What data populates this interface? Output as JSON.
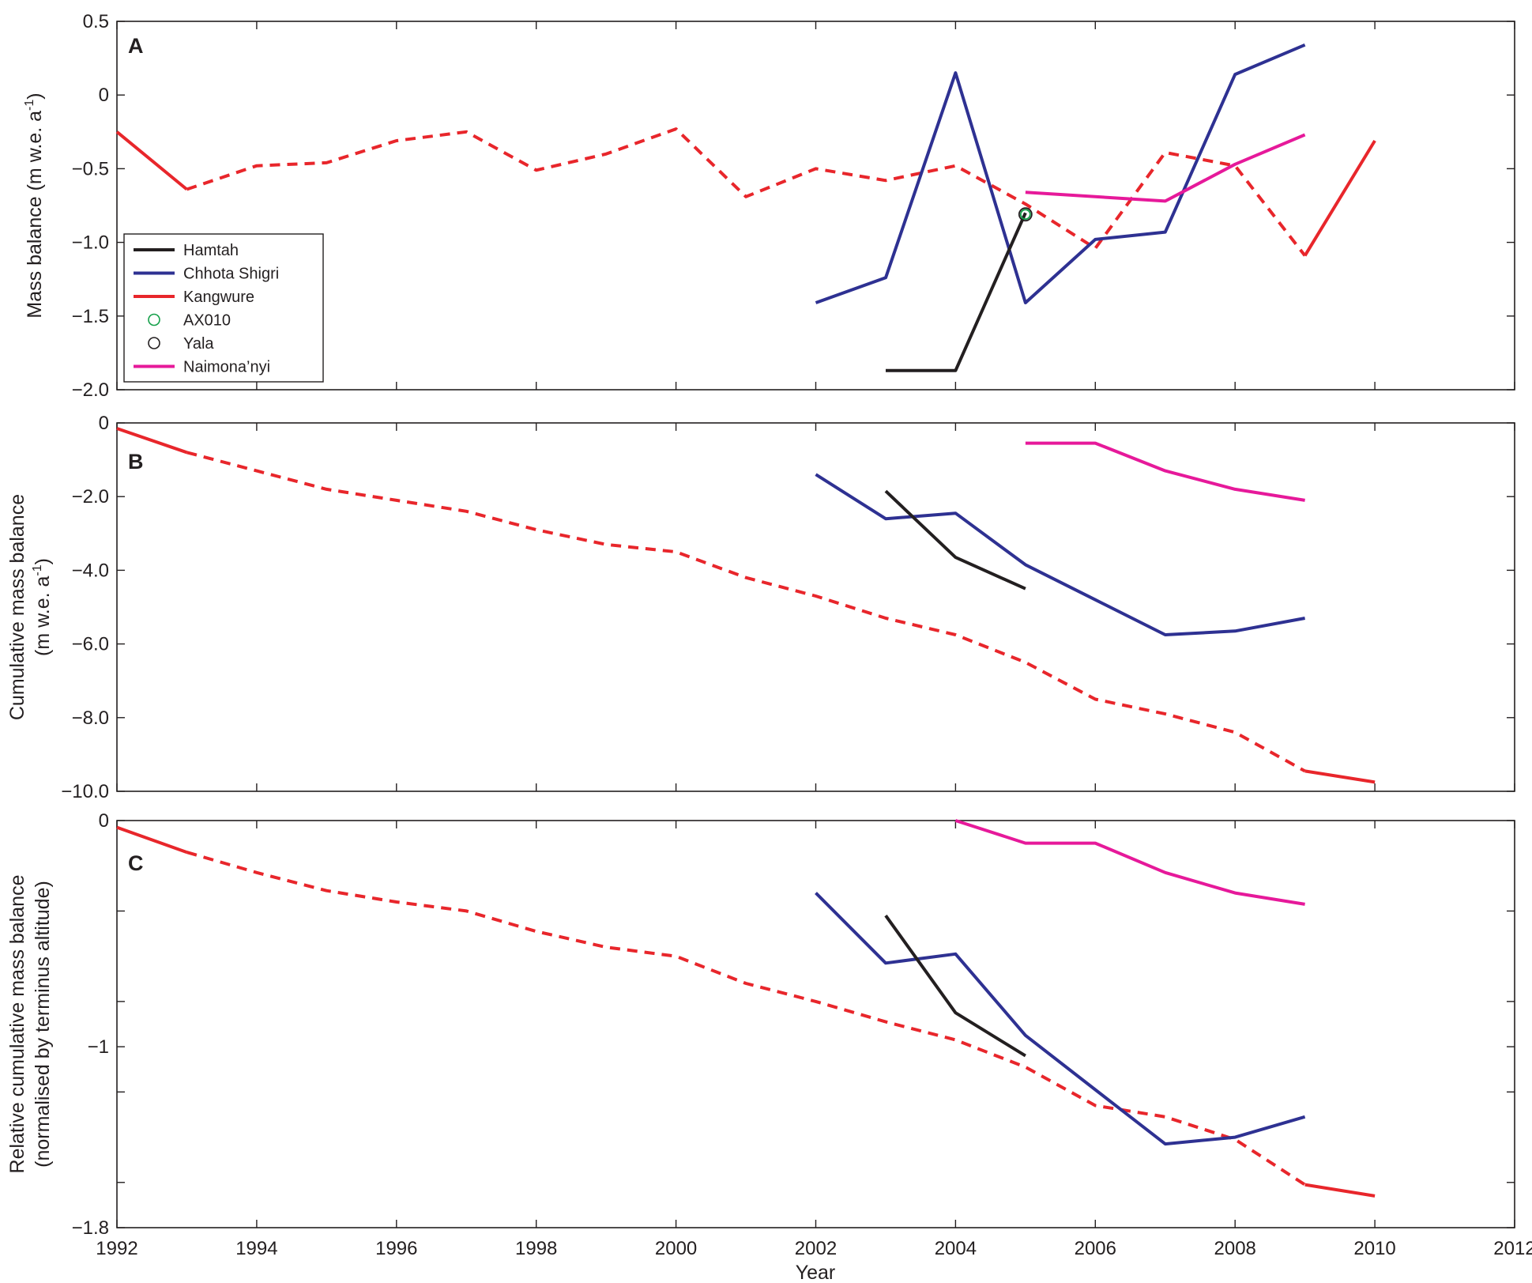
{
  "chart_data": {
    "type": "line",
    "xlabel": "Year",
    "xlim": [
      1992,
      2012
    ],
    "x_ticks": [
      1992,
      1994,
      1996,
      1998,
      2000,
      2002,
      2004,
      2006,
      2008,
      2010,
      2012
    ],
    "x_tick_labels": [
      "1992",
      "1994",
      "1996",
      "1998",
      "2000",
      "2002",
      "2004",
      "2006",
      "2008",
      "2010",
      "2012"
    ],
    "panels": [
      {
        "letter": "A",
        "ylabel_main": "Mass balance (m w.e. a",
        "ylabel_sup": "-1",
        "ylabel_close": ")",
        "ylim": [
          -2.0,
          0.5
        ],
        "y_ticks": [
          0.5,
          0,
          -0.5,
          -1.0,
          -1.5,
          -2.0
        ],
        "y_tick_labels": [
          "0.5",
          "0",
          "−0.5",
          "−1.0",
          "−1.5",
          "−2.0"
        ],
        "series": [
          {
            "name": "Kangwure",
            "color": "#e8262b",
            "segments": [
              {
                "style": "solid",
                "x": [
                  1992,
                  1993
                ],
                "y": [
                  -0.25,
                  -0.64
                ]
              },
              {
                "style": "dashed",
                "x": [
                  1993,
                  1994,
                  1995,
                  1996,
                  1997,
                  1998,
                  1999,
                  2000,
                  2001,
                  2002,
                  2003,
                  2004,
                  2005,
                  2006,
                  2007,
                  2008,
                  2009
                ],
                "y": [
                  -0.64,
                  -0.48,
                  -0.46,
                  -0.31,
                  -0.25,
                  -0.51,
                  -0.4,
                  -0.23,
                  -0.69,
                  -0.5,
                  -0.58,
                  -0.48,
                  -0.74,
                  -1.04,
                  -0.39,
                  -0.48,
                  -1.09
                ]
              },
              {
                "style": "solid",
                "x": [
                  2009,
                  2010
                ],
                "y": [
                  -1.09,
                  -0.31
                ]
              }
            ]
          },
          {
            "name": "Chhota Shigri",
            "color": "#2e3192",
            "segments": [
              {
                "style": "solid",
                "x": [
                  2002,
                  2003,
                  2004,
                  2005,
                  2006,
                  2007,
                  2008,
                  2009
                ],
                "y": [
                  -1.41,
                  -1.24,
                  0.15,
                  -1.41,
                  -0.98,
                  -0.93,
                  0.14,
                  0.34
                ]
              }
            ]
          },
          {
            "name": "Hamtah",
            "color": "#231f20",
            "segments": [
              {
                "style": "solid",
                "x": [
                  2003,
                  2004,
                  2005
                ],
                "y": [
                  -1.87,
                  -1.87,
                  -0.8
                ]
              }
            ]
          },
          {
            "name": "Naimona’nyi",
            "color": "#e6199a",
            "segments": [
              {
                "style": "solid",
                "x": [
                  2005,
                  2007,
                  2008,
                  2009
                ],
                "y": [
                  -0.66,
                  -0.72,
                  -0.47,
                  -0.27
                ]
              }
            ]
          }
        ],
        "markers": [
          {
            "name": "AX010",
            "color": "#15a04a",
            "x": 2005,
            "y": -0.81
          },
          {
            "name": "Yala",
            "color": "#231f20",
            "x": 2005,
            "y": -0.81
          }
        ]
      },
      {
        "letter": "B",
        "ylabel_line1": "Cumulative mass balance",
        "ylabel_main": "(m w.e. a",
        "ylabel_sup": "-1",
        "ylabel_close": ")",
        "ylim": [
          -10.0,
          0
        ],
        "y_ticks": [
          0,
          -2.0,
          -4.0,
          -6.0,
          -8.0,
          -10.0
        ],
        "y_tick_labels": [
          "0",
          "−2.0",
          "−4.0",
          "−6.0",
          "−8.0",
          "−10.0"
        ],
        "series": [
          {
            "name": "Kangwure",
            "color": "#e8262b",
            "segments": [
              {
                "style": "solid",
                "x": [
                  1992,
                  1993
                ],
                "y": [
                  -0.15,
                  -0.8
                ]
              },
              {
                "style": "dashed",
                "x": [
                  1993,
                  1994,
                  1995,
                  1996,
                  1997,
                  1998,
                  1999,
                  2000,
                  2001,
                  2002,
                  2003,
                  2004,
                  2005,
                  2006,
                  2007,
                  2008,
                  2009
                ],
                "y": [
                  -0.8,
                  -1.3,
                  -1.8,
                  -2.1,
                  -2.4,
                  -2.9,
                  -3.3,
                  -3.5,
                  -4.2,
                  -4.7,
                  -5.3,
                  -5.75,
                  -6.5,
                  -7.5,
                  -7.9,
                  -8.4,
                  -9.45
                ]
              },
              {
                "style": "solid",
                "x": [
                  2009,
                  2010
                ],
                "y": [
                  -9.45,
                  -9.75
                ]
              }
            ]
          },
          {
            "name": "Chhota Shigri",
            "color": "#2e3192",
            "segments": [
              {
                "style": "solid",
                "x": [
                  2002,
                  2003,
                  2004,
                  2005,
                  2006,
                  2007,
                  2008,
                  2009
                ],
                "y": [
                  -1.4,
                  -2.6,
                  -2.45,
                  -3.85,
                  -4.8,
                  -5.75,
                  -5.65,
                  -5.3
                ]
              }
            ]
          },
          {
            "name": "Hamtah",
            "color": "#231f20",
            "segments": [
              {
                "style": "solid",
                "x": [
                  2003,
                  2004,
                  2005
                ],
                "y": [
                  -1.85,
                  -3.65,
                  -4.5
                ]
              }
            ]
          },
          {
            "name": "Naimona’nyi",
            "color": "#e6199a",
            "segments": [
              {
                "style": "solid",
                "x": [
                  2005,
                  2006,
                  2007,
                  2008,
                  2009
                ],
                "y": [
                  -0.55,
                  -0.55,
                  -1.3,
                  -1.8,
                  -2.1
                ]
              }
            ]
          }
        ],
        "markers": []
      },
      {
        "letter": "C",
        "ylabel_line1": "Relative cumulative mass balance",
        "ylabel_line2": "(normalised by terminus altitude)",
        "ylim": [
          -1.8,
          0
        ],
        "y_ticks": [
          0,
          -1,
          -1.8
        ],
        "y_tick_labels": [
          "0",
          "−1",
          "−1.8"
        ],
        "y_minor_ticks": [
          -0.4,
          -0.8,
          -1.2,
          -1.6
        ],
        "series": [
          {
            "name": "Kangwure",
            "color": "#e8262b",
            "segments": [
              {
                "style": "solid",
                "x": [
                  1992,
                  1993
                ],
                "y": [
                  -0.03,
                  -0.14
                ]
              },
              {
                "style": "dashed",
                "x": [
                  1993,
                  1994,
                  1995,
                  1996,
                  1997,
                  1998,
                  1999,
                  2000,
                  2001,
                  2002,
                  2003,
                  2004,
                  2005,
                  2006,
                  2007,
                  2008,
                  2009
                ],
                "y": [
                  -0.14,
                  -0.23,
                  -0.31,
                  -0.36,
                  -0.4,
                  -0.49,
                  -0.56,
                  -0.6,
                  -0.72,
                  -0.8,
                  -0.89,
                  -0.97,
                  -1.09,
                  -1.26,
                  -1.31,
                  -1.41,
                  -1.61
                ]
              },
              {
                "style": "solid",
                "x": [
                  2009,
                  2010
                ],
                "y": [
                  -1.61,
                  -1.66
                ]
              }
            ]
          },
          {
            "name": "Chhota Shigri",
            "color": "#2e3192",
            "segments": [
              {
                "style": "solid",
                "x": [
                  2002,
                  2003,
                  2004,
                  2005,
                  2006,
                  2007,
                  2008,
                  2009
                ],
                "y": [
                  -0.32,
                  -0.63,
                  -0.59,
                  -0.95,
                  -1.19,
                  -1.43,
                  -1.4,
                  -1.31
                ]
              }
            ]
          },
          {
            "name": "Hamtah",
            "color": "#231f20",
            "segments": [
              {
                "style": "solid",
                "x": [
                  2003,
                  2004,
                  2005
                ],
                "y": [
                  -0.42,
                  -0.85,
                  -1.04
                ]
              }
            ]
          },
          {
            "name": "Naimona’nyi",
            "color": "#e6199a",
            "segments": [
              {
                "style": "solid",
                "x": [
                  2004,
                  2005,
                  2006,
                  2007,
                  2008,
                  2009
                ],
                "y": [
                  0.0,
                  -0.1,
                  -0.1,
                  -0.23,
                  -0.32,
                  -0.37
                ]
              }
            ]
          }
        ],
        "markers": []
      }
    ],
    "legend": {
      "placement": "lower-left of panel A",
      "entries": [
        {
          "label": "Hamtah",
          "kind": "line",
          "color": "#231f20"
        },
        {
          "label": "Chhota Shigri",
          "kind": "line",
          "color": "#2e3192"
        },
        {
          "label": "Kangwure",
          "kind": "line",
          "color": "#e8262b"
        },
        {
          "label": "AX010",
          "kind": "circle",
          "color": "#15a04a"
        },
        {
          "label": "Yala",
          "kind": "circle",
          "color": "#231f20"
        },
        {
          "label": "Naimona’nyi",
          "kind": "line",
          "color": "#e6199a"
        }
      ]
    }
  }
}
